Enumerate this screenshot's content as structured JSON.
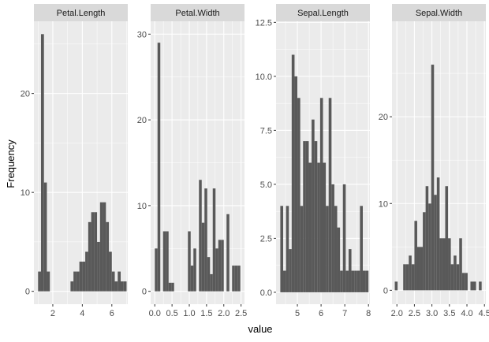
{
  "chart_data": {
    "type": "histogram-facets",
    "xlabel": "value",
    "ylabel": "Frequency",
    "bar_color": "#595959",
    "panel_bg": "#ebebeb",
    "strip_bg": "#d9d9d9",
    "grid_color": "#ffffff",
    "facets": [
      {
        "title": "Petal.Length",
        "xlim": [
          0.72,
          7.08
        ],
        "ylim": [
          -1.3,
          27.3
        ],
        "xticks": [
          2,
          4,
          6
        ],
        "xtick_labels": [
          "2",
          "4",
          "6"
        ],
        "yticks": [
          0,
          10,
          20
        ],
        "ytick_labels": [
          "0",
          "10",
          "20"
        ],
        "bins": [
          {
            "x0": 1.0,
            "x1": 1.2,
            "count": 2
          },
          {
            "x0": 1.2,
            "x1": 1.4,
            "count": 26
          },
          {
            "x0": 1.4,
            "x1": 1.6,
            "count": 11
          },
          {
            "x0": 1.6,
            "x1": 1.8,
            "count": 2
          },
          {
            "x0": 1.8,
            "x1": 2.0,
            "count": 0
          },
          {
            "x0": 2.0,
            "x1": 2.2,
            "count": 0
          },
          {
            "x0": 2.2,
            "x1": 2.4,
            "count": 0
          },
          {
            "x0": 2.4,
            "x1": 2.6,
            "count": 0
          },
          {
            "x0": 2.6,
            "x1": 2.8,
            "count": 0
          },
          {
            "x0": 2.8,
            "x1": 3.0,
            "count": 0
          },
          {
            "x0": 3.0,
            "x1": 3.2,
            "count": 0
          },
          {
            "x0": 3.2,
            "x1": 3.4,
            "count": 1
          },
          {
            "x0": 3.4,
            "x1": 3.6,
            "count": 2
          },
          {
            "x0": 3.6,
            "x1": 3.8,
            "count": 2
          },
          {
            "x0": 3.8,
            "x1": 4.0,
            "count": 3
          },
          {
            "x0": 4.0,
            "x1": 4.2,
            "count": 3
          },
          {
            "x0": 4.2,
            "x1": 4.4,
            "count": 4
          },
          {
            "x0": 4.4,
            "x1": 4.6,
            "count": 7
          },
          {
            "x0": 4.6,
            "x1": 4.8,
            "count": 8
          },
          {
            "x0": 4.8,
            "x1": 5.0,
            "count": 8
          },
          {
            "x0": 5.0,
            "x1": 5.2,
            "count": 5
          },
          {
            "x0": 5.2,
            "x1": 5.4,
            "count": 9
          },
          {
            "x0": 5.4,
            "x1": 5.6,
            "count": 9
          },
          {
            "x0": 5.6,
            "x1": 5.8,
            "count": 7
          },
          {
            "x0": 5.8,
            "x1": 6.0,
            "count": 4
          },
          {
            "x0": 6.0,
            "x1": 6.2,
            "count": 2
          },
          {
            "x0": 6.2,
            "x1": 6.4,
            "count": 1
          },
          {
            "x0": 6.4,
            "x1": 6.6,
            "count": 2
          },
          {
            "x0": 6.6,
            "x1": 6.8,
            "count": 1
          },
          {
            "x0": 6.8,
            "x1": 7.0,
            "count": 1
          }
        ]
      },
      {
        "title": "Petal.Width",
        "xlim": [
          -0.12,
          2.6
        ],
        "ylim": [
          -1.5,
          31.5
        ],
        "xticks": [
          0,
          0.5,
          1,
          1.5,
          2,
          2.5
        ],
        "xtick_labels": [
          "0.0",
          "0.5",
          "1.0",
          "1.5",
          "2.0",
          "2.5"
        ],
        "yticks": [
          0,
          10,
          20,
          30
        ],
        "ytick_labels": [
          "0",
          "10",
          "20",
          "30"
        ],
        "bins": [
          {
            "x0": 0.0,
            "x1": 0.08,
            "count": 5
          },
          {
            "x0": 0.08,
            "x1": 0.16,
            "count": 29
          },
          {
            "x0": 0.16,
            "x1": 0.24,
            "count": 0
          },
          {
            "x0": 0.24,
            "x1": 0.32,
            "count": 7
          },
          {
            "x0": 0.32,
            "x1": 0.4,
            "count": 7
          },
          {
            "x0": 0.4,
            "x1": 0.48,
            "count": 1
          },
          {
            "x0": 0.48,
            "x1": 0.56,
            "count": 1
          },
          {
            "x0": 0.56,
            "x1": 0.64,
            "count": 0
          },
          {
            "x0": 0.64,
            "x1": 0.72,
            "count": 0
          },
          {
            "x0": 0.72,
            "x1": 0.8,
            "count": 0
          },
          {
            "x0": 0.8,
            "x1": 0.88,
            "count": 0
          },
          {
            "x0": 0.88,
            "x1": 0.96,
            "count": 0
          },
          {
            "x0": 0.96,
            "x1": 1.04,
            "count": 7
          },
          {
            "x0": 1.04,
            "x1": 1.12,
            "count": 3
          },
          {
            "x0": 1.12,
            "x1": 1.2,
            "count": 5
          },
          {
            "x0": 1.2,
            "x1": 1.28,
            "count": 0
          },
          {
            "x0": 1.28,
            "x1": 1.36,
            "count": 13
          },
          {
            "x0": 1.36,
            "x1": 1.44,
            "count": 8
          },
          {
            "x0": 1.44,
            "x1": 1.52,
            "count": 12
          },
          {
            "x0": 1.52,
            "x1": 1.6,
            "count": 4
          },
          {
            "x0": 1.6,
            "x1": 1.68,
            "count": 2
          },
          {
            "x0": 1.68,
            "x1": 1.76,
            "count": 12
          },
          {
            "x0": 1.76,
            "x1": 1.84,
            "count": 5
          },
          {
            "x0": 1.84,
            "x1": 1.92,
            "count": 6
          },
          {
            "x0": 1.92,
            "x1": 2.0,
            "count": 6
          },
          {
            "x0": 2.0,
            "x1": 2.08,
            "count": 0
          },
          {
            "x0": 2.08,
            "x1": 2.16,
            "count": 9
          },
          {
            "x0": 2.16,
            "x1": 2.24,
            "count": 0
          },
          {
            "x0": 2.24,
            "x1": 2.32,
            "count": 3
          },
          {
            "x0": 2.32,
            "x1": 2.4,
            "count": 3
          },
          {
            "x0": 2.4,
            "x1": 2.48,
            "count": 3
          }
        ]
      },
      {
        "title": "Sepal.Length",
        "xlim": [
          4.1,
          8.06
        ],
        "ylim": [
          -0.55,
          12.55
        ],
        "xticks": [
          5,
          6,
          7,
          8
        ],
        "xtick_labels": [
          "5",
          "6",
          "7",
          "8"
        ],
        "yticks": [
          0,
          2.5,
          5,
          7.5,
          10,
          12.5
        ],
        "ytick_labels": [
          "0.0",
          "2.5",
          "5.0",
          "7.5",
          "10.0",
          "12.5"
        ],
        "bins": [
          {
            "x0": 4.28,
            "x1": 4.4,
            "count": 4
          },
          {
            "x0": 4.4,
            "x1": 4.52,
            "count": 1
          },
          {
            "x0": 4.52,
            "x1": 4.64,
            "count": 4
          },
          {
            "x0": 4.64,
            "x1": 4.76,
            "count": 2
          },
          {
            "x0": 4.76,
            "x1": 4.88,
            "count": 11
          },
          {
            "x0": 4.88,
            "x1": 5.0,
            "count": 10
          },
          {
            "x0": 5.0,
            "x1": 5.12,
            "count": 9
          },
          {
            "x0": 5.12,
            "x1": 5.24,
            "count": 4
          },
          {
            "x0": 5.24,
            "x1": 5.36,
            "count": 7
          },
          {
            "x0": 5.36,
            "x1": 5.48,
            "count": 7
          },
          {
            "x0": 5.48,
            "x1": 5.6,
            "count": 6
          },
          {
            "x0": 5.6,
            "x1": 5.72,
            "count": 8
          },
          {
            "x0": 5.72,
            "x1": 5.84,
            "count": 7
          },
          {
            "x0": 5.84,
            "x1": 5.96,
            "count": 6
          },
          {
            "x0": 5.96,
            "x1": 6.08,
            "count": 9
          },
          {
            "x0": 6.08,
            "x1": 6.2,
            "count": 6
          },
          {
            "x0": 6.2,
            "x1": 6.32,
            "count": 4
          },
          {
            "x0": 6.32,
            "x1": 6.44,
            "count": 9
          },
          {
            "x0": 6.44,
            "x1": 6.56,
            "count": 5
          },
          {
            "x0": 6.56,
            "x1": 6.68,
            "count": 4
          },
          {
            "x0": 6.68,
            "x1": 6.8,
            "count": 3
          },
          {
            "x0": 6.8,
            "x1": 6.92,
            "count": 1
          },
          {
            "x0": 6.92,
            "x1": 7.04,
            "count": 5
          },
          {
            "x0": 7.04,
            "x1": 7.16,
            "count": 1
          },
          {
            "x0": 7.16,
            "x1": 7.28,
            "count": 2
          },
          {
            "x0": 7.28,
            "x1": 7.4,
            "count": 1
          },
          {
            "x0": 7.4,
            "x1": 7.52,
            "count": 1
          },
          {
            "x0": 7.52,
            "x1": 7.64,
            "count": 1
          },
          {
            "x0": 7.64,
            "x1": 7.76,
            "count": 4
          },
          {
            "x0": 7.76,
            "x1": 7.88,
            "count": 1
          },
          {
            "x0": 7.88,
            "x1": 8.0,
            "count": 1
          }
        ]
      },
      {
        "title": "Sepal.Width",
        "xlim": [
          1.86,
          4.54
        ],
        "ylim": [
          -1.6,
          31.0
        ],
        "xticks": [
          2.0,
          2.5,
          3.0,
          3.5,
          4.0,
          4.5
        ],
        "xtick_labels": [
          "2.0",
          "2.5",
          "3.0",
          "3.5",
          "4.0",
          "4.5"
        ],
        "yticks": [
          0,
          10,
          20
        ],
        "ytick_labels": [
          "0",
          "10",
          "20"
        ],
        "bins": [
          {
            "x0": 1.94,
            "x1": 2.02,
            "count": 1
          },
          {
            "x0": 2.02,
            "x1": 2.1,
            "count": 0
          },
          {
            "x0": 2.1,
            "x1": 2.18,
            "count": 0
          },
          {
            "x0": 2.18,
            "x1": 2.26,
            "count": 3
          },
          {
            "x0": 2.26,
            "x1": 2.34,
            "count": 3
          },
          {
            "x0": 2.34,
            "x1": 2.42,
            "count": 4
          },
          {
            "x0": 2.42,
            "x1": 2.5,
            "count": 3
          },
          {
            "x0": 2.5,
            "x1": 2.58,
            "count": 8
          },
          {
            "x0": 2.58,
            "x1": 2.66,
            "count": 5
          },
          {
            "x0": 2.66,
            "x1": 2.74,
            "count": 5
          },
          {
            "x0": 2.74,
            "x1": 2.82,
            "count": 9
          },
          {
            "x0": 2.82,
            "x1": 2.9,
            "count": 12
          },
          {
            "x0": 2.9,
            "x1": 2.98,
            "count": 10
          },
          {
            "x0": 2.98,
            "x1": 3.06,
            "count": 26
          },
          {
            "x0": 3.06,
            "x1": 3.14,
            "count": 11
          },
          {
            "x0": 3.14,
            "x1": 3.22,
            "count": 13
          },
          {
            "x0": 3.22,
            "x1": 3.3,
            "count": 6
          },
          {
            "x0": 3.3,
            "x1": 3.38,
            "count": 6
          },
          {
            "x0": 3.38,
            "x1": 3.46,
            "count": 12
          },
          {
            "x0": 3.46,
            "x1": 3.54,
            "count": 6
          },
          {
            "x0": 3.54,
            "x1": 3.62,
            "count": 3
          },
          {
            "x0": 3.62,
            "x1": 3.7,
            "count": 4
          },
          {
            "x0": 3.7,
            "x1": 3.78,
            "count": 3
          },
          {
            "x0": 3.78,
            "x1": 3.86,
            "count": 6
          },
          {
            "x0": 3.86,
            "x1": 3.94,
            "count": 2
          },
          {
            "x0": 3.94,
            "x1": 4.02,
            "count": 2
          },
          {
            "x0": 4.02,
            "x1": 4.1,
            "count": 0
          },
          {
            "x0": 4.1,
            "x1": 4.18,
            "count": 1
          },
          {
            "x0": 4.18,
            "x1": 4.26,
            "count": 1
          },
          {
            "x0": 4.26,
            "x1": 4.34,
            "count": 0
          },
          {
            "x0": 4.34,
            "x1": 4.42,
            "count": 1
          }
        ]
      }
    ]
  }
}
